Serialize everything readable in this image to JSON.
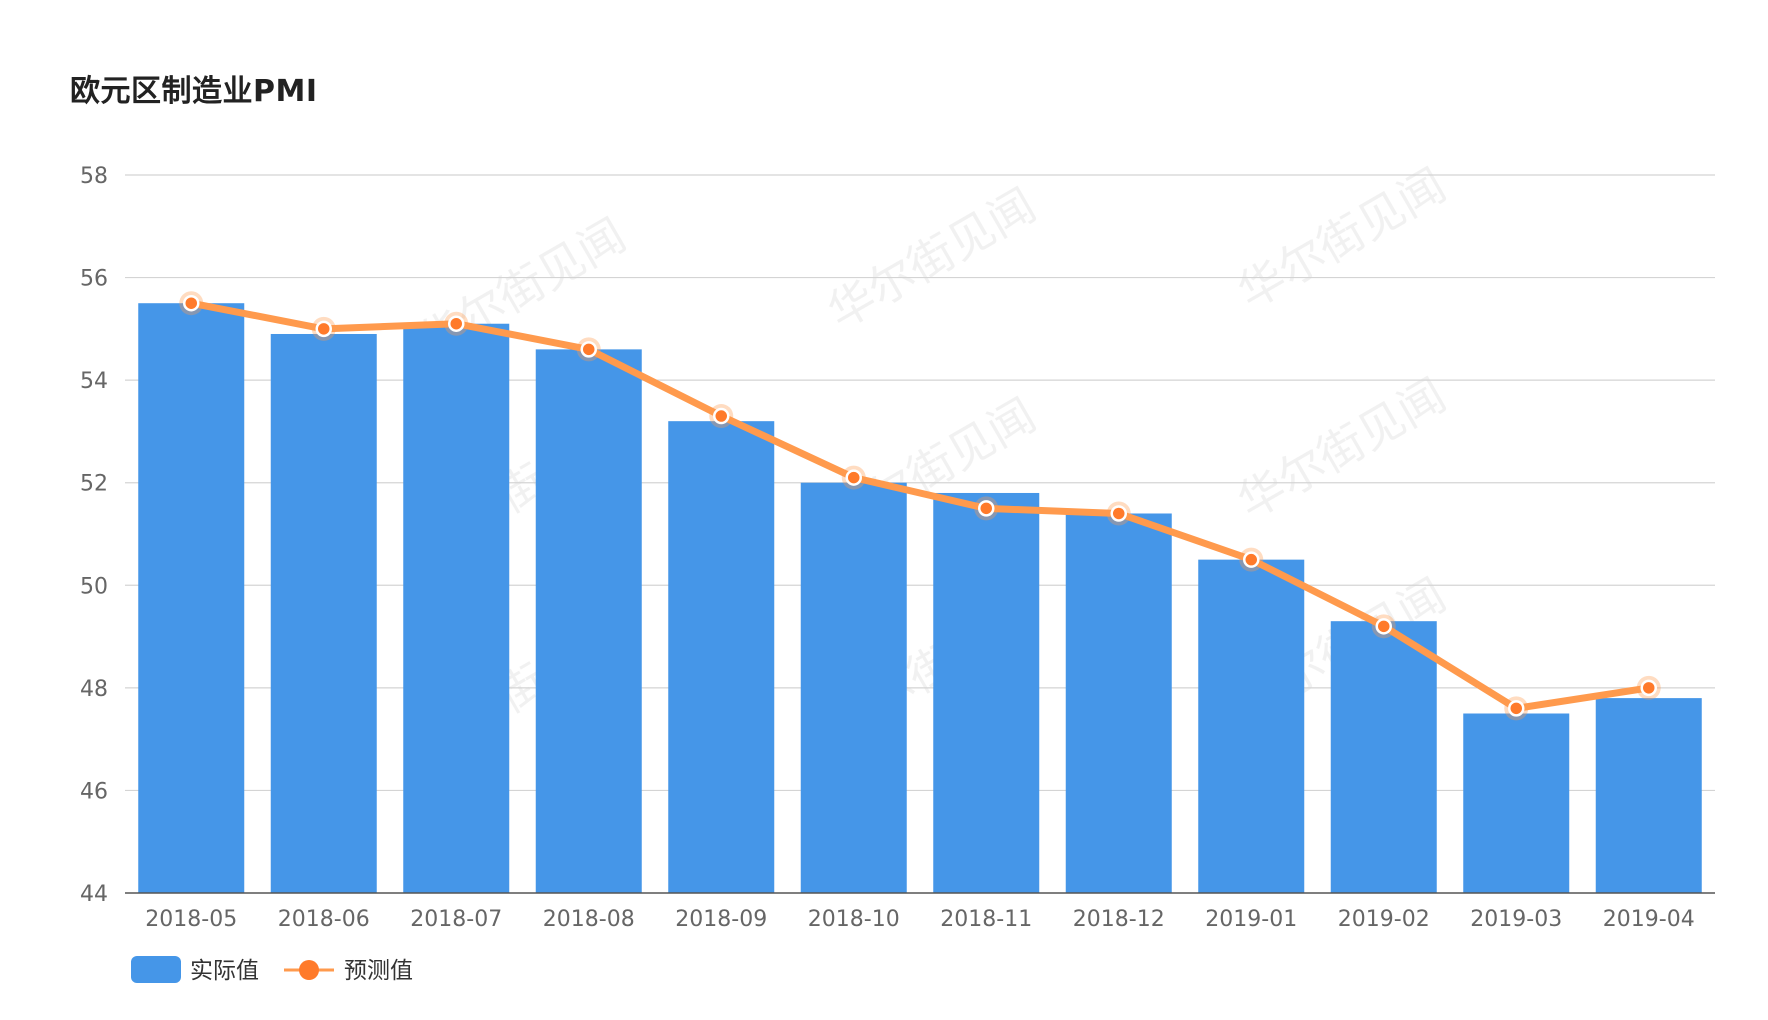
{
  "chart_data": {
    "type": "bar",
    "title": "欧元区制造业PMI",
    "categories": [
      "2018-05",
      "2018-06",
      "2018-07",
      "2018-08",
      "2018-09",
      "2018-10",
      "2018-11",
      "2018-12",
      "2019-01",
      "2019-02",
      "2019-03",
      "2019-04"
    ],
    "series": [
      {
        "name": "实际值",
        "type": "bar",
        "color": "#4596e8",
        "values": [
          55.5,
          54.9,
          55.1,
          54.6,
          53.2,
          52.0,
          51.8,
          51.4,
          50.5,
          49.3,
          47.5,
          47.8
        ]
      },
      {
        "name": "预测值",
        "type": "line",
        "color": "#ff9a4d",
        "marker_color": "#ff7a2a",
        "values": [
          55.5,
          55.0,
          55.1,
          54.6,
          53.3,
          52.1,
          51.5,
          51.4,
          50.5,
          49.2,
          47.6,
          48.0
        ]
      }
    ],
    "ylim": [
      44,
      58
    ],
    "yticks": [
      44,
      46,
      48,
      50,
      52,
      54,
      56,
      58
    ],
    "xlabel": "",
    "ylabel": "",
    "grid": true,
    "legend": "bottom-left",
    "watermark": "华尔街见闻"
  }
}
